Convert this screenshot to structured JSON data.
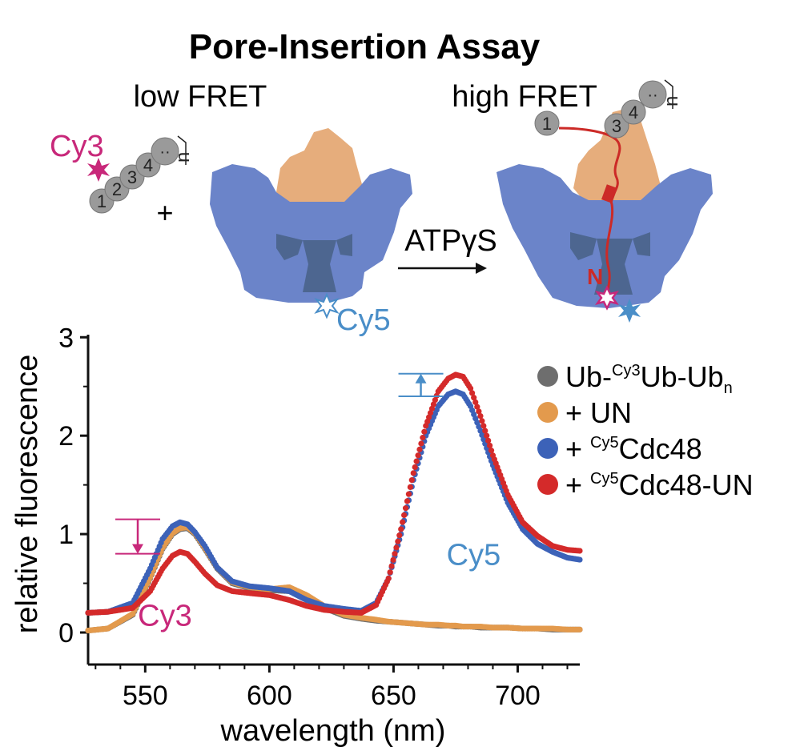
{
  "figure": {
    "title": "Pore-Insertion Assay",
    "low_fret_label": "low FRET",
    "high_fret_label": "high FRET",
    "cy3_label": "Cy3",
    "cy5_label": "Cy5",
    "plus_sign": "+",
    "arrow_label": "ATPγS",
    "n_terminus_label": "N",
    "repeat_subscript": "n",
    "chain_beads_low": [
      "1",
      "2",
      "3",
      "4",
      "··"
    ],
    "chain_beads_high": [
      "1",
      "3",
      "4",
      "··"
    ],
    "colors": {
      "cy3_magenta": "#c8287a",
      "cy5_blue": "#4a8ec8",
      "cdc48_blue": "#6b84c9",
      "channel_dark": "#4d6690",
      "un_tan": "#e6ad7c",
      "substrate_red": "#cc2a27",
      "bead_gray": "#9a9a9a"
    }
  },
  "chart_data": {
    "type": "scatter",
    "xlabel": "wavelength (nm)",
    "ylabel": "relative fluorescence",
    "xlim": [
      527,
      725
    ],
    "ylim": [
      0,
      3
    ],
    "xticks": [
      550,
      600,
      650,
      700
    ],
    "yticks": [
      0,
      1,
      2,
      3
    ],
    "x": [
      527,
      535,
      545,
      552,
      557,
      561,
      564,
      567,
      570,
      574,
      579,
      585,
      592,
      600,
      608,
      615,
      622,
      630,
      637,
      643,
      648,
      653,
      658,
      663,
      668,
      672,
      675,
      678,
      681,
      685,
      690,
      696,
      702,
      708,
      714,
      720,
      725
    ],
    "series": [
      {
        "name": "Ub-Cy3Ub-Ubn",
        "display": {
          "pre": "Ub-",
          "sup": "Cy3",
          "main": "Ub-Ub",
          "sub": "n"
        },
        "color": "#6e6e6e",
        "values": [
          0.02,
          0.04,
          0.18,
          0.55,
          0.85,
          1.0,
          1.05,
          1.06,
          1.0,
          0.85,
          0.65,
          0.5,
          0.45,
          0.43,
          0.42,
          0.35,
          0.25,
          0.17,
          0.14,
          0.12,
          0.11,
          0.1,
          0.09,
          0.08,
          0.07,
          0.07,
          0.06,
          0.06,
          0.06,
          0.05,
          0.05,
          0.05,
          0.04,
          0.04,
          0.03,
          0.03,
          0.03
        ]
      },
      {
        "name": "+ UN",
        "display": {
          "pre": "+ UN",
          "sup": "",
          "main": "",
          "sub": ""
        },
        "color": "#e39a4d",
        "values": [
          0.02,
          0.04,
          0.19,
          0.56,
          0.86,
          1.01,
          1.06,
          1.07,
          1.01,
          0.86,
          0.66,
          0.51,
          0.46,
          0.44,
          0.46,
          0.38,
          0.27,
          0.18,
          0.15,
          0.13,
          0.11,
          0.1,
          0.09,
          0.08,
          0.08,
          0.07,
          0.07,
          0.06,
          0.06,
          0.06,
          0.05,
          0.05,
          0.04,
          0.04,
          0.04,
          0.03,
          0.03
        ]
      },
      {
        "name": "+ Cy5Cdc48",
        "display": {
          "pre": "+ ",
          "sup": "Cy5",
          "main": "Cdc48",
          "sub": ""
        },
        "color": "#3c62b8",
        "values": [
          0.2,
          0.21,
          0.3,
          0.65,
          0.95,
          1.08,
          1.12,
          1.1,
          1.02,
          0.88,
          0.66,
          0.52,
          0.47,
          0.45,
          0.42,
          0.33,
          0.27,
          0.24,
          0.22,
          0.3,
          0.55,
          1.0,
          1.55,
          2.0,
          2.3,
          2.42,
          2.45,
          2.42,
          2.3,
          2.05,
          1.7,
          1.32,
          1.05,
          0.9,
          0.82,
          0.76,
          0.74
        ]
      },
      {
        "name": "+ Cy5Cdc48-UN",
        "display": {
          "pre": "+ ",
          "sup": "Cy5",
          "main": "Cdc48-UN",
          "sub": ""
        },
        "color": "#d42a2a",
        "values": [
          0.2,
          0.21,
          0.25,
          0.42,
          0.65,
          0.78,
          0.82,
          0.8,
          0.72,
          0.6,
          0.48,
          0.42,
          0.4,
          0.38,
          0.33,
          0.27,
          0.23,
          0.21,
          0.2,
          0.28,
          0.55,
          1.05,
          1.62,
          2.1,
          2.45,
          2.58,
          2.62,
          2.6,
          2.48,
          2.2,
          1.8,
          1.4,
          1.12,
          0.98,
          0.88,
          0.84,
          0.83
        ]
      }
    ],
    "annotations": [
      {
        "text": "Cy3",
        "x": 566,
        "y": 0.2,
        "color": "#c8287a"
      },
      {
        "text": "Cy5",
        "x": 700,
        "y": 0.85,
        "color": "#4a8ec8"
      }
    ],
    "arrows": [
      {
        "kind": "decrease",
        "from": 1.15,
        "to": 0.8,
        "x": 547,
        "color": "#c8287a"
      },
      {
        "kind": "increase",
        "from": 2.4,
        "to": 2.63,
        "x": 661,
        "color": "#4a8ec8"
      }
    ],
    "grid": false,
    "legend_position": "top-right"
  }
}
